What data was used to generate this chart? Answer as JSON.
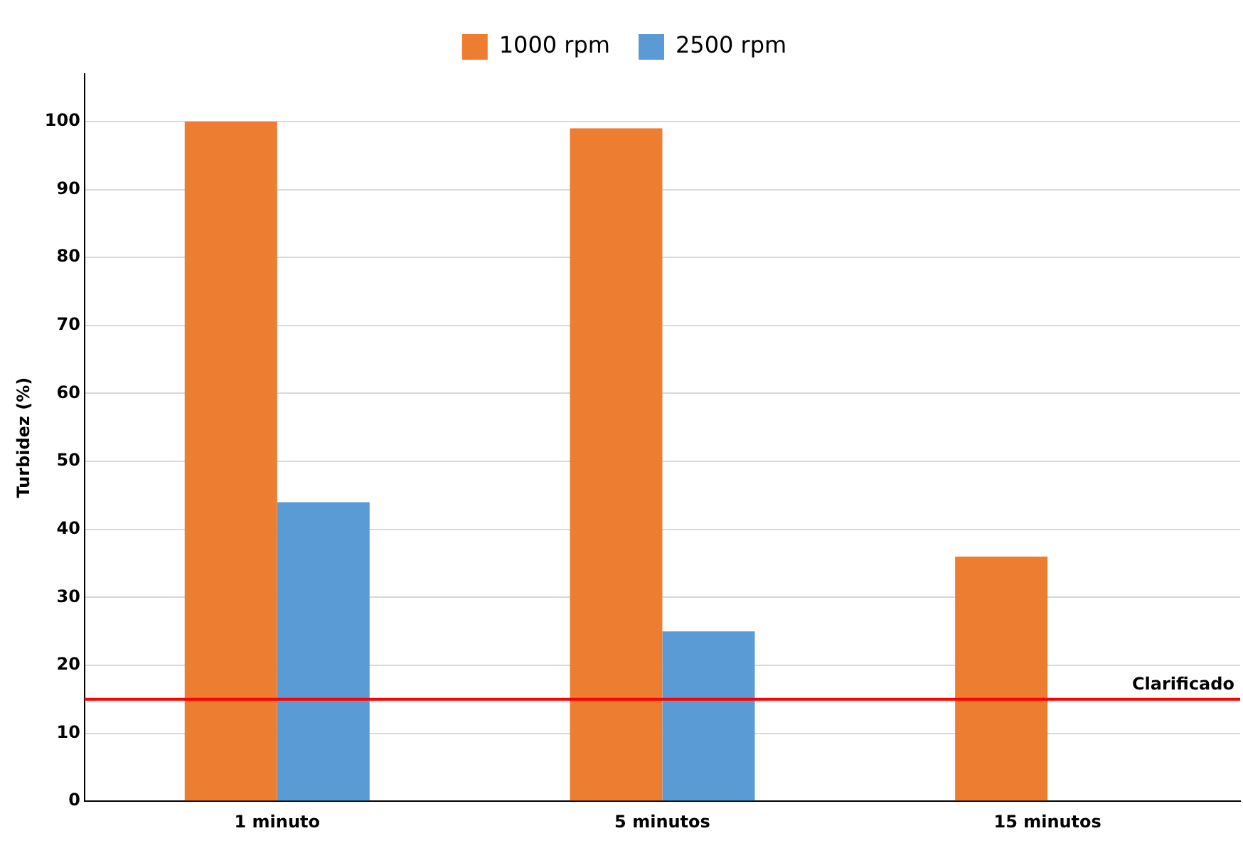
{
  "chart_data": {
    "type": "bar",
    "ylabel": "Turbidez (%)",
    "categories": [
      "1 minuto",
      "5 minutos",
      "15 minutos"
    ],
    "series": [
      {
        "name": "1000 rpm",
        "color": "#ed7d31",
        "values": [
          100,
          99,
          36
        ]
      },
      {
        "name": "2500 rpm",
        "color": "#5b9bd5",
        "values": [
          44,
          25,
          null
        ]
      }
    ],
    "ylim": [
      0,
      107
    ],
    "yticks": [
      0,
      10,
      20,
      30,
      40,
      50,
      60,
      70,
      80,
      90,
      100
    ],
    "grid": "y",
    "legend": "top",
    "ref_lines": [
      {
        "axis": "y",
        "value": 15,
        "label": "Clarificado",
        "color": "#ff0000"
      }
    ]
  }
}
